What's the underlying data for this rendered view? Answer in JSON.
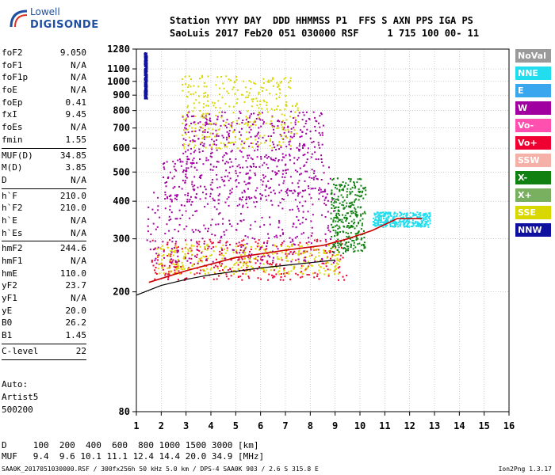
{
  "logo": {
    "line1": "Lowell",
    "line2": "DIGISONDE"
  },
  "header": {
    "row1": "Station YYYY DAY  DDD HHMMSS P1  FFS S AXN PPS IGA PS",
    "row2": "SaoLuis 2017 Feb20 051 030000 RSF     1 715 100 00- 11"
  },
  "params_group1": [
    {
      "k": "foF2",
      "v": "9.050"
    },
    {
      "k": "foF1",
      "v": "N/A"
    },
    {
      "k": "foF1p",
      "v": "N/A"
    },
    {
      "k": "foE",
      "v": "N/A"
    },
    {
      "k": "foEp",
      "v": "0.41"
    },
    {
      "k": "fxI",
      "v": "9.45"
    },
    {
      "k": "foEs",
      "v": "N/A"
    },
    {
      "k": "fmin",
      "v": "1.55"
    }
  ],
  "params_group2": [
    {
      "k": "MUF(D)",
      "v": "34.85"
    },
    {
      "k": "M(D)",
      "v": "3.85"
    },
    {
      "k": "D",
      "v": "N/A"
    }
  ],
  "params_group3": [
    {
      "k": "h`F",
      "v": "210.0"
    },
    {
      "k": "h`F2",
      "v": "210.0"
    },
    {
      "k": "h`E",
      "v": "N/A"
    },
    {
      "k": "h`Es",
      "v": "N/A"
    }
  ],
  "params_group4": [
    {
      "k": "hmF2",
      "v": "244.6"
    },
    {
      "k": "hmF1",
      "v": "N/A"
    },
    {
      "k": "hmE",
      "v": "110.0"
    },
    {
      "k": "yF2",
      "v": "23.7"
    },
    {
      "k": "yF1",
      "v": "N/A"
    },
    {
      "k": "yE",
      "v": "20.0"
    },
    {
      "k": "B0",
      "v": "26.2"
    },
    {
      "k": "B1",
      "v": "1.45"
    }
  ],
  "params_group5": [
    {
      "k": "C-level",
      "v": "22"
    }
  ],
  "auto": {
    "line1": "Auto:",
    "line2": "Artist5",
    "line3": "500200"
  },
  "bottom": {
    "d_row": "D     100  200  400  600  800 1000 1500 3000 [km]",
    "muf_row": "MUF   9.4  9.6 10.1 11.1 12.4 14.4 20.0 34.9 [MHz]"
  },
  "footer": {
    "left": "SAA0K_2017051030000.RSF / 300fx256h 50 kHz 5.0 km / DPS-4 SAA0K 903 / 2.6 S 315.8 E",
    "right": "Ion2Png 1.3.17"
  },
  "legend": [
    {
      "name": "NoVal",
      "color": "#9a9a9a"
    },
    {
      "name": "NNE",
      "color": "#22ddee"
    },
    {
      "name": "E",
      "color": "#3aa6ee"
    },
    {
      "name": "W",
      "color": "#a000a0"
    },
    {
      "name": "Vo-",
      "color": "#ff50b0"
    },
    {
      "name": "Vo+",
      "color": "#ee0030"
    },
    {
      "name": "SSW",
      "color": "#f5b0a8"
    },
    {
      "name": "X-",
      "color": "#108010"
    },
    {
      "name": "X+",
      "color": "#78b060"
    },
    {
      "name": "SSE",
      "color": "#d8d800"
    },
    {
      "name": "NNW",
      "color": "#1010a0"
    }
  ],
  "chart_data": {
    "type": "scatter",
    "title": "",
    "xlabel": "",
    "ylabel": "",
    "x_ticks": [
      1,
      2,
      3,
      4,
      5,
      6,
      7,
      8,
      9,
      10,
      11,
      12,
      13,
      14,
      15,
      16
    ],
    "y_ticks": [
      80,
      200,
      300,
      400,
      500,
      600,
      700,
      800,
      900,
      1000,
      1100,
      1280
    ],
    "y_scale": "log",
    "xlim": [
      1,
      16
    ],
    "ylim": [
      80,
      1280
    ],
    "grid": true,
    "traces": [
      {
        "name": "hv-profile",
        "points": [
          [
            1,
            195
          ],
          [
            2,
            210
          ],
          [
            3,
            220
          ],
          [
            4,
            228
          ],
          [
            5,
            234
          ],
          [
            6,
            240
          ],
          [
            7,
            245
          ],
          [
            8,
            250
          ],
          [
            9,
            255
          ]
        ]
      },
      {
        "name": "F-trace-base",
        "points": [
          [
            1.5,
            215
          ],
          [
            3,
            235
          ],
          [
            5,
            260
          ],
          [
            7,
            275
          ],
          [
            8.5,
            285
          ],
          [
            9.5,
            300
          ],
          [
            10.5,
            320
          ],
          [
            11.5,
            350
          ],
          [
            12.5,
            350
          ]
        ]
      }
    ],
    "clusters": [
      {
        "class": "Vo+",
        "x": [
          1.6,
          9.5
        ],
        "y": [
          220,
          300
        ]
      },
      {
        "class": "SSE",
        "x": [
          1.8,
          9.2
        ],
        "y": [
          230,
          290
        ]
      },
      {
        "class": "W",
        "x": [
          1.4,
          9.0
        ],
        "y": [
          250,
          440
        ]
      },
      {
        "class": "W",
        "x": [
          2.0,
          8.8
        ],
        "y": [
          400,
          560
        ]
      },
      {
        "class": "W",
        "x": [
          2.8,
          8.5
        ],
        "y": [
          550,
          800
        ]
      },
      {
        "class": "SSE",
        "x": [
          2.8,
          7.5
        ],
        "y": [
          600,
          1050
        ]
      },
      {
        "class": "X-",
        "x": [
          8.8,
          10.2
        ],
        "y": [
          270,
          480
        ]
      },
      {
        "class": "NNE",
        "x": [
          10.5,
          12.8
        ],
        "y": [
          330,
          370
        ]
      },
      {
        "class": "NNW",
        "x": [
          1.3,
          1.4
        ],
        "y": [
          880,
          1250
        ]
      }
    ]
  }
}
